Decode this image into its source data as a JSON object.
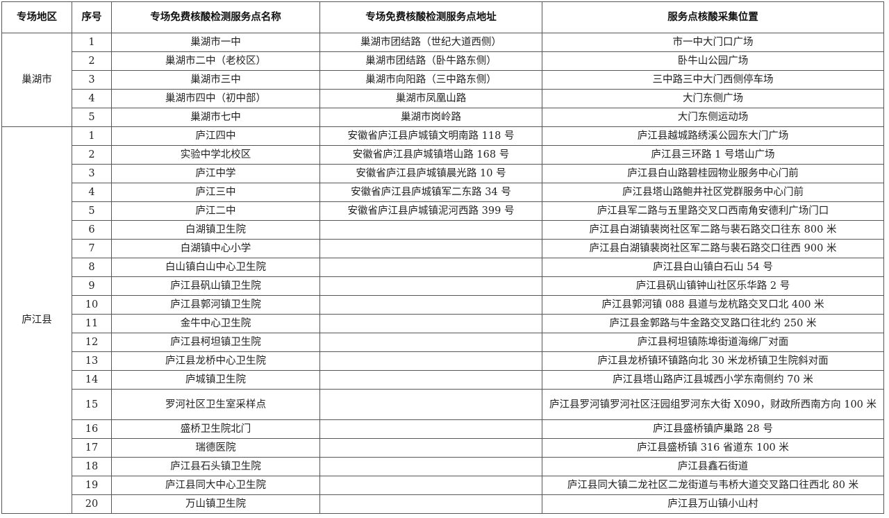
{
  "headers": [
    "专场地区",
    "序号",
    "专场免费核酸检测服务点名称",
    "专场免费核酸检测服务点地址",
    "服务点核酸采集位置"
  ],
  "groups": [
    {
      "region": "巢湖市",
      "rows": [
        {
          "no": "1",
          "name": "巢湖市一中",
          "address": "巢湖市团结路（世纪大道西侧）",
          "location": "市一中大门口广场"
        },
        {
          "no": "2",
          "name": "巢湖市二中（老校区）",
          "address": "巢湖市团结路（卧牛路东侧）",
          "location": "卧牛山公园广场"
        },
        {
          "no": "3",
          "name": "巢湖市三中",
          "address": "巢湖市向阳路（三中路东侧）",
          "location": "三中路三中大门西侧停车场"
        },
        {
          "no": "4",
          "name": "巢湖市四中（初中部）",
          "address": "巢湖市凤凰山路",
          "location": "大门东侧广场"
        },
        {
          "no": "5",
          "name": "巢湖市七中",
          "address": "巢湖市岗岭路",
          "location": "大门东侧运动场"
        }
      ]
    },
    {
      "region": "庐江县",
      "rows": [
        {
          "no": "1",
          "name": "庐江四中",
          "address": "安徽省庐江县庐城镇文明南路 118 号",
          "location": "庐江县越城路绣溪公园东大门广场"
        },
        {
          "no": "2",
          "name": "实验中学北校区",
          "address": "安徽省庐江县庐城镇塔山路 168 号",
          "location": "庐江县三环路 1 号塔山广场"
        },
        {
          "no": "3",
          "name": "庐江中学",
          "address": "安徽省庐江县庐城镇晨光路 10 号",
          "location": "庐江县白山路碧桂园物业服务中心门前"
        },
        {
          "no": "4",
          "name": "庐江三中",
          "address": "安徽省庐江县庐城镇军二东路 34 号",
          "location": "庐江县塔山路鲍井社区党群服务中心门前"
        },
        {
          "no": "5",
          "name": "庐江二中",
          "address": "安徽省庐江县庐城镇泥河西路 399 号",
          "location": "庐江县军二路与五里路交叉口西南角安德利广场门口"
        },
        {
          "no": "6",
          "name": "白湖镇卫生院",
          "address": "",
          "location": "庐江县白湖镇裴岗社区军二路与裴石路交口往东 800 米"
        },
        {
          "no": "7",
          "name": "白湖镇中心小学",
          "address": "",
          "location": "庐江县白湖镇裴岗社区军二路与裴石路交口往西 900 米"
        },
        {
          "no": "8",
          "name": "白山镇白山中心卫生院",
          "address": "",
          "location": "庐江县白山镇白石山 54 号"
        },
        {
          "no": "9",
          "name": "庐江县矾山镇卫生院",
          "address": "",
          "location": "庐江县矾山镇钟山社区乐华路 2 号"
        },
        {
          "no": "10",
          "name": "庐江县郭河镇卫生院",
          "address": "",
          "location": "庐江县郭河镇 088 县道与龙杭路交叉口北 400 米"
        },
        {
          "no": "11",
          "name": "金牛中心卫生院",
          "address": "",
          "location": "庐江县金郭路与牛金路交叉路口往北约 250 米"
        },
        {
          "no": "12",
          "name": "庐江县柯坦镇卫生院",
          "address": "",
          "location": "庐江县柯坦镇陈埠街道海绵厂对面"
        },
        {
          "no": "13",
          "name": "庐江县龙桥中心卫生院",
          "address": "",
          "location": "庐江县龙桥镇环镇路向北 30 米龙桥镇卫生院斜对面"
        },
        {
          "no": "14",
          "name": "庐城镇卫生院",
          "address": "",
          "location": "庐江县塔山路庐江县城西小学东南侧约 70 米"
        },
        {
          "no": "15",
          "name": "罗河社区卫生室采样点",
          "address": "",
          "location": "庐江县罗河镇罗河社区汪园组罗河东大街 X090，财政所西南方向 100 米"
        },
        {
          "no": "16",
          "name": "盛桥卫生院北门",
          "address": "",
          "location": "庐江县盛桥镇庐巢路 28 号"
        },
        {
          "no": "17",
          "name": "瑞德医院",
          "address": "",
          "location": "庐江县盛桥镇 316 省道东 100 米"
        },
        {
          "no": "18",
          "name": "庐江县石头镇卫生院",
          "address": "",
          "location": "庐江县鑫石街道"
        },
        {
          "no": "19",
          "name": "庐江县同大中心卫生院",
          "address": "",
          "location": "庐江县同大镇二龙社区二龙街道与韦桥大道交叉路口往西北 80 米"
        },
        {
          "no": "20",
          "name": "万山镇卫生院",
          "address": "",
          "location": "庐江县万山镇小山村"
        }
      ]
    }
  ]
}
